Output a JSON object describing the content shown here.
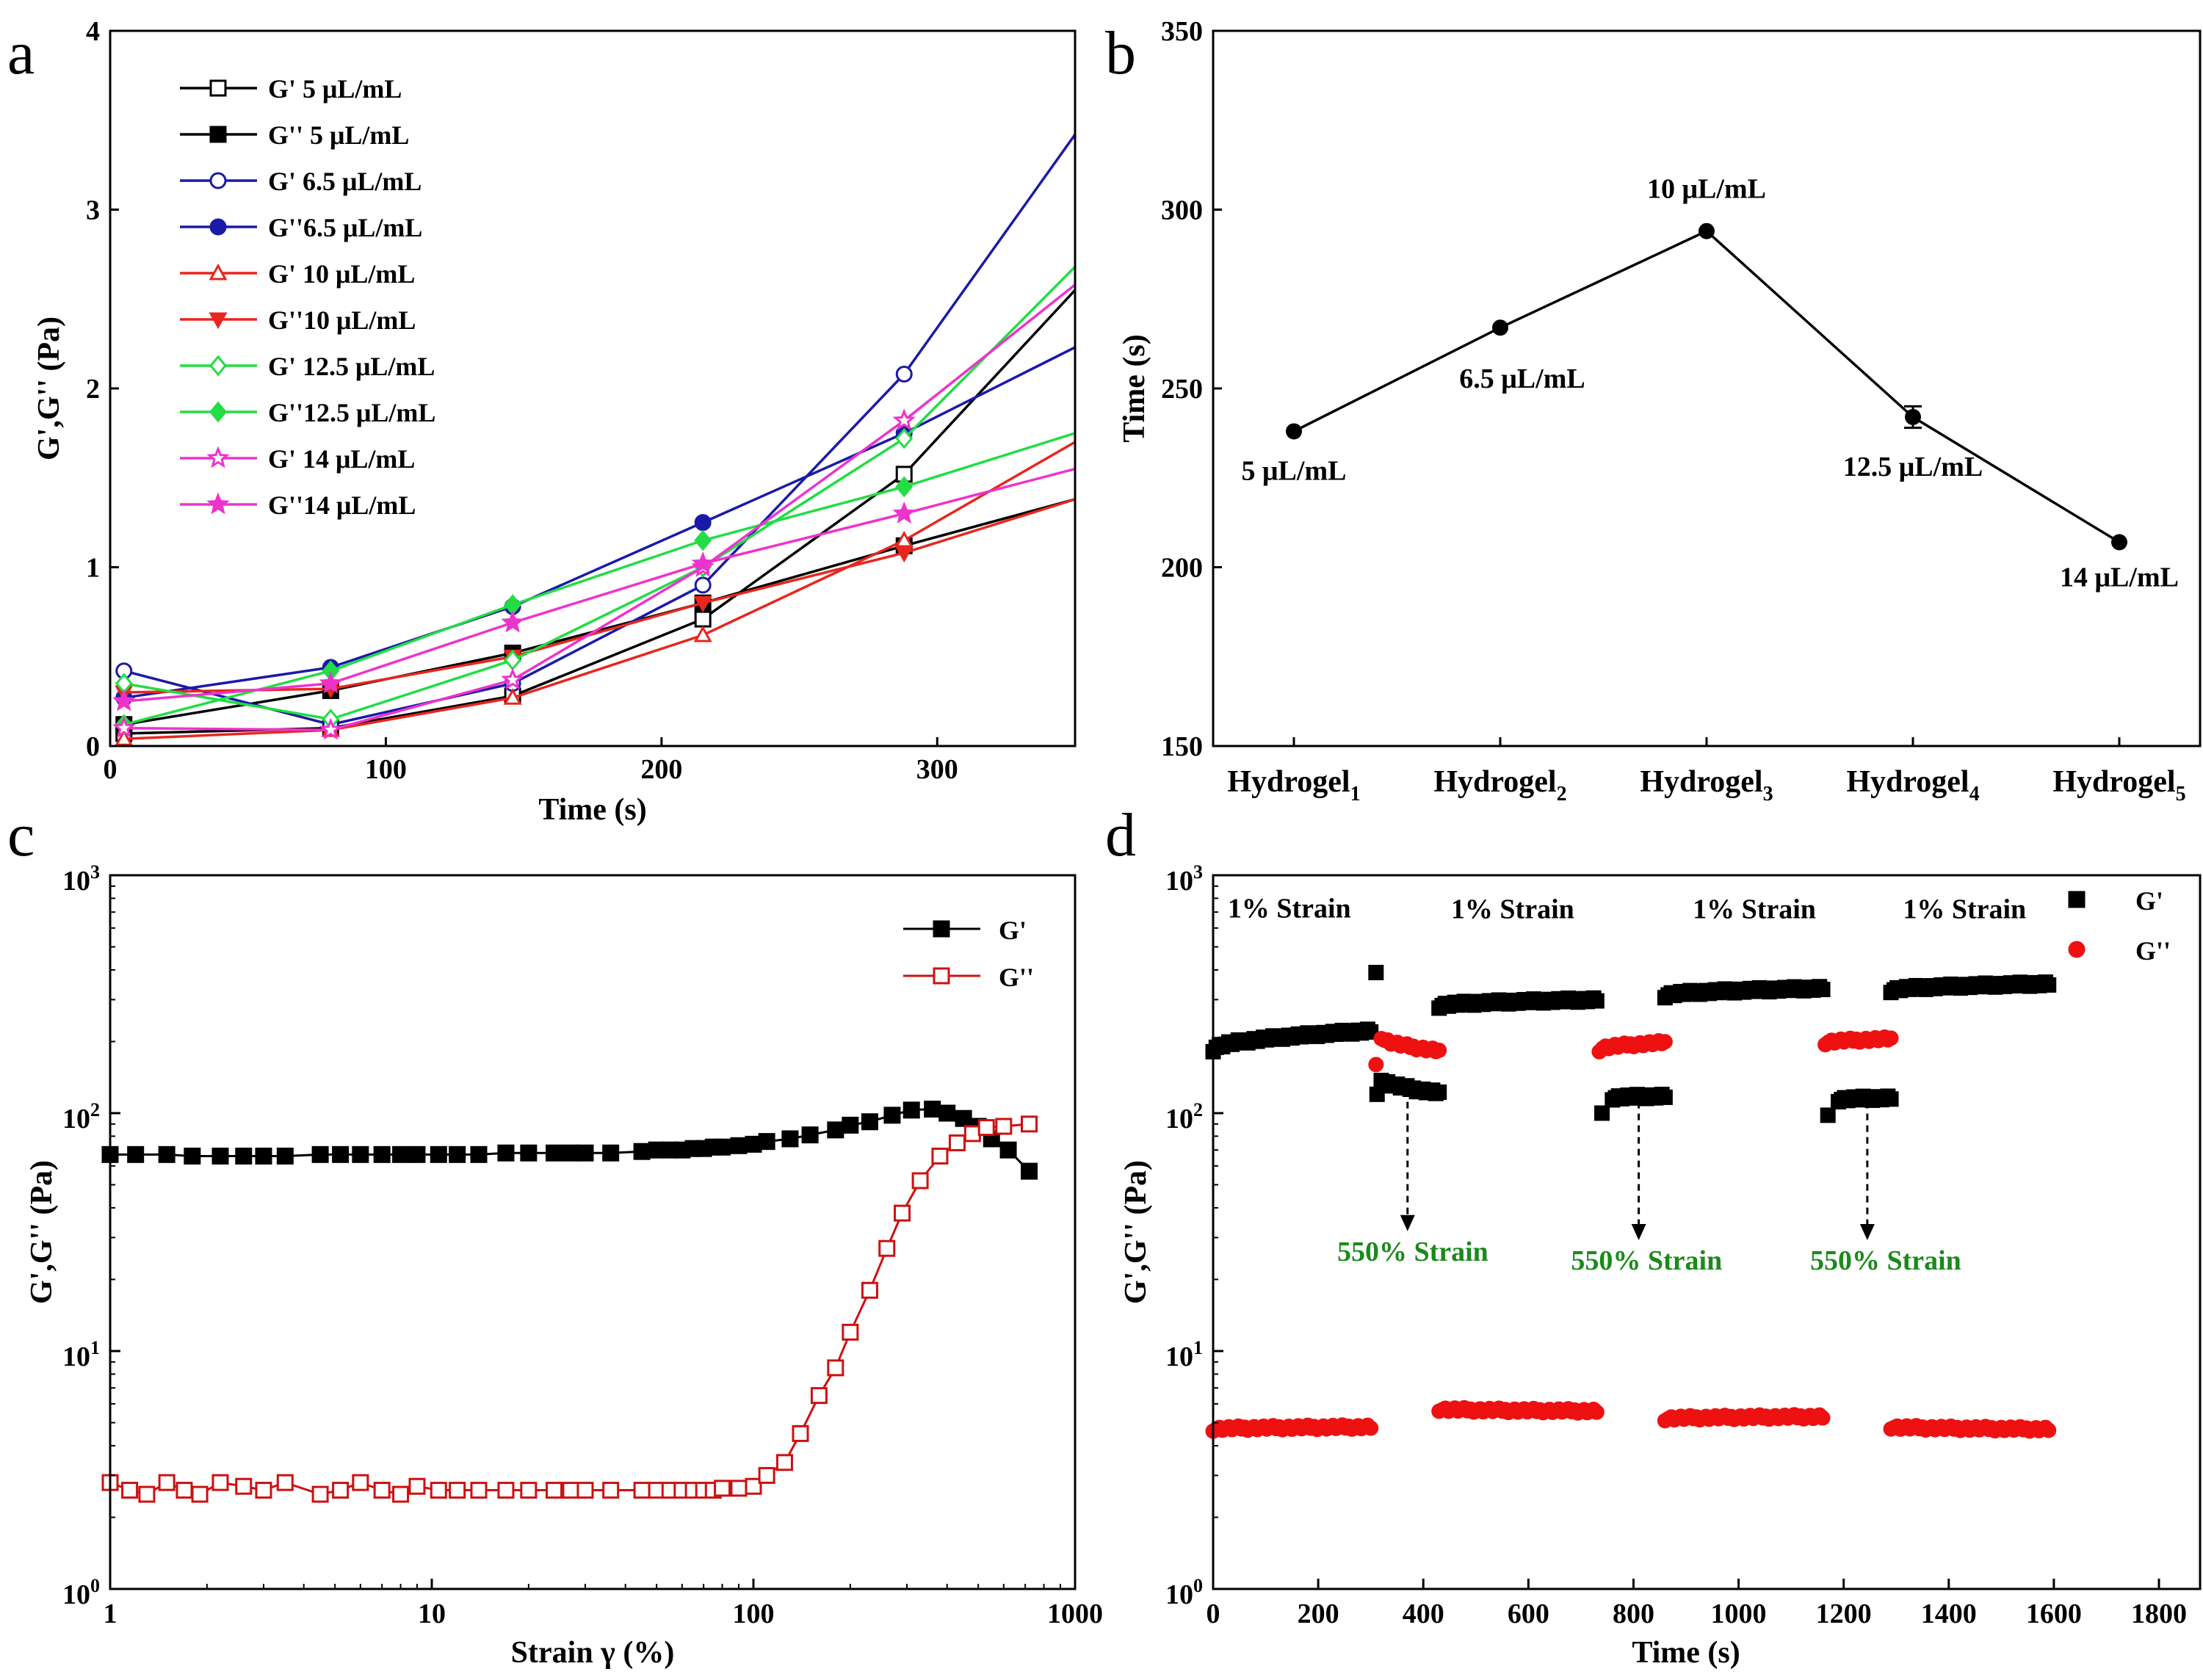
{
  "figure": {
    "panel_labels": [
      "a",
      "b",
      "c",
      "d"
    ]
  },
  "chart_data": [
    {
      "type": "line",
      "panel": "a",
      "xlabel": "Time (s)",
      "ylabel": "G',G'' (Pa)",
      "xlim": [
        0,
        350
      ],
      "ylim": [
        0,
        4
      ],
      "xticks": [
        0,
        100,
        200,
        300
      ],
      "yticks": [
        0,
        1,
        2,
        3,
        4
      ],
      "legend_position": "top-left",
      "series": [
        {
          "name": "G'  5 μL/mL",
          "color": "#000000",
          "marker": "square-open",
          "x": [
            5,
            80,
            146,
            215,
            288,
            350
          ],
          "y": [
            0.07,
            0.1,
            0.28,
            0.71,
            1.52,
            2.55
          ]
        },
        {
          "name": "G'' 5 μL/mL",
          "color": "#000000",
          "marker": "square-filled",
          "x": [
            5,
            80,
            146,
            215,
            288,
            350
          ],
          "y": [
            0.12,
            0.31,
            0.52,
            0.8,
            1.12,
            1.38
          ]
        },
        {
          "name": "G' 6.5 μL/mL",
          "color": "#1a1aa8",
          "marker": "circle-open",
          "x": [
            5,
            80,
            146,
            215,
            288,
            350
          ],
          "y": [
            0.42,
            0.12,
            0.35,
            0.9,
            2.08,
            3.42
          ]
        },
        {
          "name": "G''6.5 μL/mL",
          "color": "#1a1aa8",
          "marker": "circle-filled",
          "x": [
            5,
            80,
            146,
            215,
            288,
            350
          ],
          "y": [
            0.27,
            0.44,
            0.78,
            1.25,
            1.75,
            2.23
          ]
        },
        {
          "name": "G' 10 μL/mL",
          "color": "#e8261e",
          "marker": "triangle-open",
          "x": [
            5,
            80,
            146,
            215,
            288,
            350
          ],
          "y": [
            0.04,
            0.09,
            0.27,
            0.62,
            1.15,
            1.7
          ]
        },
        {
          "name": "G''10 μL/mL",
          "color": "#e8261e",
          "marker": "triangle-down-filled",
          "x": [
            5,
            80,
            146,
            215,
            288,
            350
          ],
          "y": [
            0.3,
            0.32,
            0.5,
            0.8,
            1.08,
            1.38
          ]
        },
        {
          "name": "G' 12.5 μL/mL",
          "color": "#22dd44",
          "marker": "diamond-open",
          "x": [
            5,
            80,
            146,
            215,
            288,
            350
          ],
          "y": [
            0.35,
            0.15,
            0.48,
            1.0,
            1.72,
            2.68
          ]
        },
        {
          "name": "G''12.5 μL/mL",
          "color": "#22dd44",
          "marker": "diamond-filled",
          "x": [
            5,
            80,
            146,
            215,
            288,
            350
          ],
          "y": [
            0.12,
            0.42,
            0.79,
            1.15,
            1.45,
            1.75
          ]
        },
        {
          "name": "G' 14 μL/mL",
          "color": "#ee33cc",
          "marker": "star-open",
          "x": [
            5,
            80,
            146,
            215,
            288,
            350
          ],
          "y": [
            0.1,
            0.09,
            0.37,
            1.0,
            1.82,
            2.58
          ]
        },
        {
          "name": "G''14 μL/mL",
          "color": "#ee33cc",
          "marker": "star-filled",
          "x": [
            5,
            80,
            146,
            215,
            288,
            350
          ],
          "y": [
            0.25,
            0.35,
            0.69,
            1.02,
            1.3,
            1.55
          ]
        }
      ]
    },
    {
      "type": "line",
      "panel": "b",
      "xlabel": "",
      "ylabel": "Time (s)",
      "ylim": [
        150,
        350
      ],
      "yticks": [
        150,
        200,
        250,
        300,
        350
      ],
      "categories": [
        {
          "base": "Hydrogel",
          "sub": "1"
        },
        {
          "base": "Hydrogel",
          "sub": "2"
        },
        {
          "base": "Hydrogel",
          "sub": "3"
        },
        {
          "base": "Hydrogel",
          "sub": "4"
        },
        {
          "base": "Hydrogel",
          "sub": "5"
        }
      ],
      "values": [
        238,
        267,
        294,
        242,
        207
      ],
      "errors": [
        0,
        0,
        0,
        3,
        0
      ],
      "point_labels": [
        "5 μL/mL",
        "6.5 μL/mL",
        "10 μL/mL",
        "12.5 μL/mL",
        "14 μL/mL"
      ],
      "color": "#000000"
    },
    {
      "type": "line",
      "panel": "c",
      "xscale": "log",
      "yscale": "log",
      "xlabel": "Strain γ (%)",
      "ylabel": "G',G'' (Pa)",
      "xlim": [
        1,
        1000
      ],
      "ylim": [
        1,
        1000
      ],
      "xticks": [
        "1",
        "10",
        "100",
        "1000"
      ],
      "yticks": [
        {
          "base": "10",
          "exp": "0"
        },
        {
          "base": "10",
          "exp": "1"
        },
        {
          "base": "10",
          "exp": "2"
        },
        {
          "base": "10",
          "exp": "3"
        }
      ],
      "legend_position": "top-right",
      "series": [
        {
          "name": "G'",
          "color": "#000000",
          "marker": "square-filled",
          "x": [
            1,
            1.2,
            1.5,
            1.8,
            2.2,
            2.6,
            3,
            3.5,
            4.5,
            5.2,
            6,
            7,
            8,
            9,
            10.5,
            12,
            14,
            17,
            20,
            24,
            27,
            30,
            36,
            45,
            50,
            55,
            60,
            65,
            70,
            75,
            80,
            90,
            100,
            110,
            130,
            150,
            180,
            200,
            230,
            270,
            310,
            360,
            400,
            450,
            500,
            550,
            620,
            720
          ],
          "y": [
            67,
            67,
            67,
            66,
            66,
            66,
            66,
            66,
            67,
            67,
            67,
            67,
            67,
            67,
            67,
            67,
            67,
            68,
            68,
            68,
            68,
            68,
            68,
            69,
            70,
            70,
            70,
            71,
            71,
            72,
            72,
            73,
            74,
            76,
            78,
            81,
            85,
            89,
            92,
            98,
            103,
            104,
            100,
            95,
            88,
            78,
            70,
            57
          ]
        },
        {
          "name": "G''",
          "color": "#cc1111",
          "marker": "square-open",
          "x": [
            1,
            1.15,
            1.3,
            1.5,
            1.7,
            1.9,
            2.2,
            2.6,
            3,
            3.5,
            4.5,
            5.2,
            6,
            7,
            8,
            9,
            10.5,
            12,
            14,
            17,
            20,
            24,
            27,
            30,
            36,
            45,
            50,
            55,
            60,
            65,
            70,
            75,
            80,
            90,
            100,
            110,
            125,
            140,
            160,
            180,
            200,
            230,
            260,
            290,
            330,
            380,
            430,
            480,
            530,
            600,
            720
          ],
          "y": [
            2.8,
            2.6,
            2.5,
            2.8,
            2.6,
            2.5,
            2.8,
            2.7,
            2.6,
            2.8,
            2.5,
            2.6,
            2.8,
            2.6,
            2.5,
            2.7,
            2.6,
            2.6,
            2.6,
            2.6,
            2.6,
            2.6,
            2.6,
            2.6,
            2.6,
            2.6,
            2.6,
            2.6,
            2.6,
            2.6,
            2.6,
            2.6,
            2.65,
            2.65,
            2.7,
            3.0,
            3.4,
            4.5,
            6.5,
            8.5,
            12,
            18,
            27,
            38,
            52,
            66,
            75,
            82,
            87,
            88,
            90
          ]
        }
      ]
    },
    {
      "type": "scatter",
      "panel": "d",
      "yscale": "log",
      "xlabel": "Time (s)",
      "ylabel": "G',G'' (Pa)",
      "xlim": [
        0,
        1800
      ],
      "ylim": [
        1,
        1000
      ],
      "xticks": [
        0,
        200,
        400,
        600,
        800,
        1000,
        1200,
        1400,
        1600,
        1800
      ],
      "yticks": [
        {
          "base": "10",
          "exp": "0"
        },
        {
          "base": "10",
          "exp": "1"
        },
        {
          "base": "10",
          "exp": "2"
        },
        {
          "base": "10",
          "exp": "3"
        }
      ],
      "legend_position": "top-right",
      "annotations": [
        {
          "text": "1% Strain",
          "x": 145,
          "y": 665
        },
        {
          "text": "1% Strain",
          "x": 570,
          "y": 660
        },
        {
          "text": "1% Strain",
          "x": 1030,
          "y": 660
        },
        {
          "text": "1% Strain",
          "x": 1430,
          "y": 660
        }
      ],
      "high_strain_labels": [
        {
          "text": "550% Strain",
          "x": 380,
          "y": 24,
          "arrow_x": 370
        },
        {
          "text": "550% Strain",
          "x": 825,
          "y": 22,
          "arrow_x": 810
        },
        {
          "text": "550% Strain",
          "x": 1280,
          "y": 22,
          "arrow_x": 1245
        }
      ],
      "series": [
        {
          "name": "G'",
          "color": "#000000",
          "marker": "square-filled",
          "segments": [
            {
              "x_start": 0,
              "x_end": 300,
              "y_start": 185,
              "y_end": 222
            },
            {
              "x_start": 320,
              "x_end": 430,
              "y_start": 140,
              "y_end": 122,
              "first_point": {
                "x": 310,
                "y": 390
              },
              "second_point": {
                "x": 312,
                "y": 120
              }
            },
            {
              "x_start": 430,
              "x_end": 730,
              "y_start": 282,
              "y_end": 300
            },
            {
              "x_start": 760,
              "x_end": 860,
              "y_start": 116,
              "y_end": 118,
              "first_point": {
                "x": 740,
                "y": 100
              }
            },
            {
              "x_start": 860,
              "x_end": 1160,
              "y_start": 312,
              "y_end": 335
            },
            {
              "x_start": 1190,
              "x_end": 1290,
              "y_start": 114,
              "y_end": 116,
              "first_point": {
                "x": 1170,
                "y": 98
              }
            },
            {
              "x_start": 1290,
              "x_end": 1590,
              "y_start": 328,
              "y_end": 350
            }
          ]
        },
        {
          "name": "G''",
          "color": "#ee1111",
          "marker": "circle-filled",
          "segments": [
            {
              "x_start": 0,
              "x_end": 300,
              "y_start": 4.7,
              "y_end": 4.8
            },
            {
              "x_start": 320,
              "x_end": 430,
              "y_start": 210,
              "y_end": 183,
              "first_point": {
                "x": 310,
                "y": 160
              }
            },
            {
              "x_start": 430,
              "x_end": 730,
              "y_start": 5.7,
              "y_end": 5.6
            },
            {
              "x_start": 735,
              "x_end": 860,
              "y_start": 185,
              "y_end": 198
            },
            {
              "x_start": 860,
              "x_end": 1160,
              "y_start": 5.2,
              "y_end": 5.3
            },
            {
              "x_start": 1165,
              "x_end": 1290,
              "y_start": 198,
              "y_end": 205
            },
            {
              "x_start": 1290,
              "x_end": 1590,
              "y_start": 4.8,
              "y_end": 4.7
            }
          ]
        }
      ]
    }
  ]
}
